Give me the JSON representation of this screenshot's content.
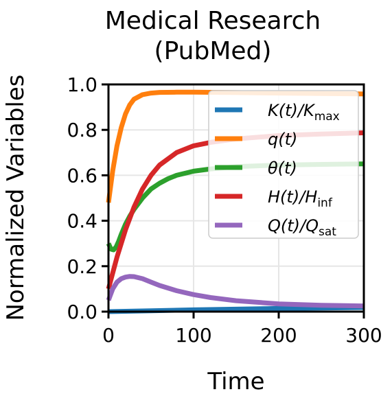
{
  "chart_data": {
    "type": "line",
    "title": "Medical Research",
    "subtitle": "(PubMed)",
    "xlabel": "Time",
    "ylabel": "Normalized Variables",
    "xlim": [
      0,
      300
    ],
    "ylim": [
      0,
      1.0
    ],
    "xticks": [
      "0",
      "100",
      "200",
      "300"
    ],
    "yticks": [
      "0.0",
      "0.2",
      "0.4",
      "0.6",
      "0.8",
      "1.0"
    ],
    "grid": true,
    "legend_position": "top-right",
    "series": [
      {
        "name": "K(t)/K",
        "name_base": "K(t)/K",
        "name_sub": "max",
        "color": "#1f77b4",
        "x": [
          0,
          50,
          100,
          150,
          200,
          250,
          300
        ],
        "y": [
          0.0,
          0.004,
          0.008,
          0.011,
          0.014,
          0.016,
          0.018
        ]
      },
      {
        "name": "q(t)",
        "name_base": "q(t)",
        "name_sub": "",
        "color": "#ff7f0e",
        "x": [
          0,
          5,
          10,
          15,
          20,
          25,
          30,
          40,
          50,
          60,
          80,
          100,
          150,
          200,
          250,
          300
        ],
        "y": [
          0.48,
          0.62,
          0.73,
          0.81,
          0.87,
          0.91,
          0.935,
          0.955,
          0.962,
          0.965,
          0.966,
          0.966,
          0.964,
          0.962,
          0.96,
          0.958
        ]
      },
      {
        "name": "θ(t)",
        "name_base": "θ(t)",
        "name_sub": "",
        "color": "#2ca02c",
        "x": [
          0,
          3,
          6,
          9,
          12,
          15,
          20,
          25,
          30,
          40,
          50,
          60,
          70,
          80,
          100,
          120,
          150,
          200,
          250,
          300
        ],
        "y": [
          0.3,
          0.275,
          0.272,
          0.285,
          0.31,
          0.34,
          0.385,
          0.42,
          0.45,
          0.5,
          0.54,
          0.565,
          0.585,
          0.6,
          0.618,
          0.628,
          0.638,
          0.645,
          0.648,
          0.65
        ]
      },
      {
        "name": "H(t)/H",
        "name_base": "H(t)/H",
        "name_sub": "inf",
        "color": "#d62728",
        "x": [
          0,
          5,
          10,
          15,
          20,
          25,
          30,
          40,
          50,
          60,
          80,
          100,
          120,
          150,
          200,
          250,
          300
        ],
        "y": [
          0.1,
          0.17,
          0.24,
          0.3,
          0.36,
          0.41,
          0.46,
          0.54,
          0.6,
          0.645,
          0.7,
          0.73,
          0.745,
          0.76,
          0.775,
          0.782,
          0.787
        ]
      },
      {
        "name": "Q(t)/Q",
        "name_base": "Q(t)/Q",
        "name_sub": "sat",
        "color": "#9467bd",
        "x": [
          0,
          5,
          10,
          15,
          20,
          25,
          30,
          40,
          50,
          60,
          80,
          100,
          120,
          150,
          200,
          250,
          300
        ],
        "y": [
          0.05,
          0.1,
          0.13,
          0.145,
          0.152,
          0.155,
          0.154,
          0.145,
          0.13,
          0.115,
          0.092,
          0.075,
          0.062,
          0.048,
          0.034,
          0.028,
          0.025
        ]
      }
    ]
  }
}
